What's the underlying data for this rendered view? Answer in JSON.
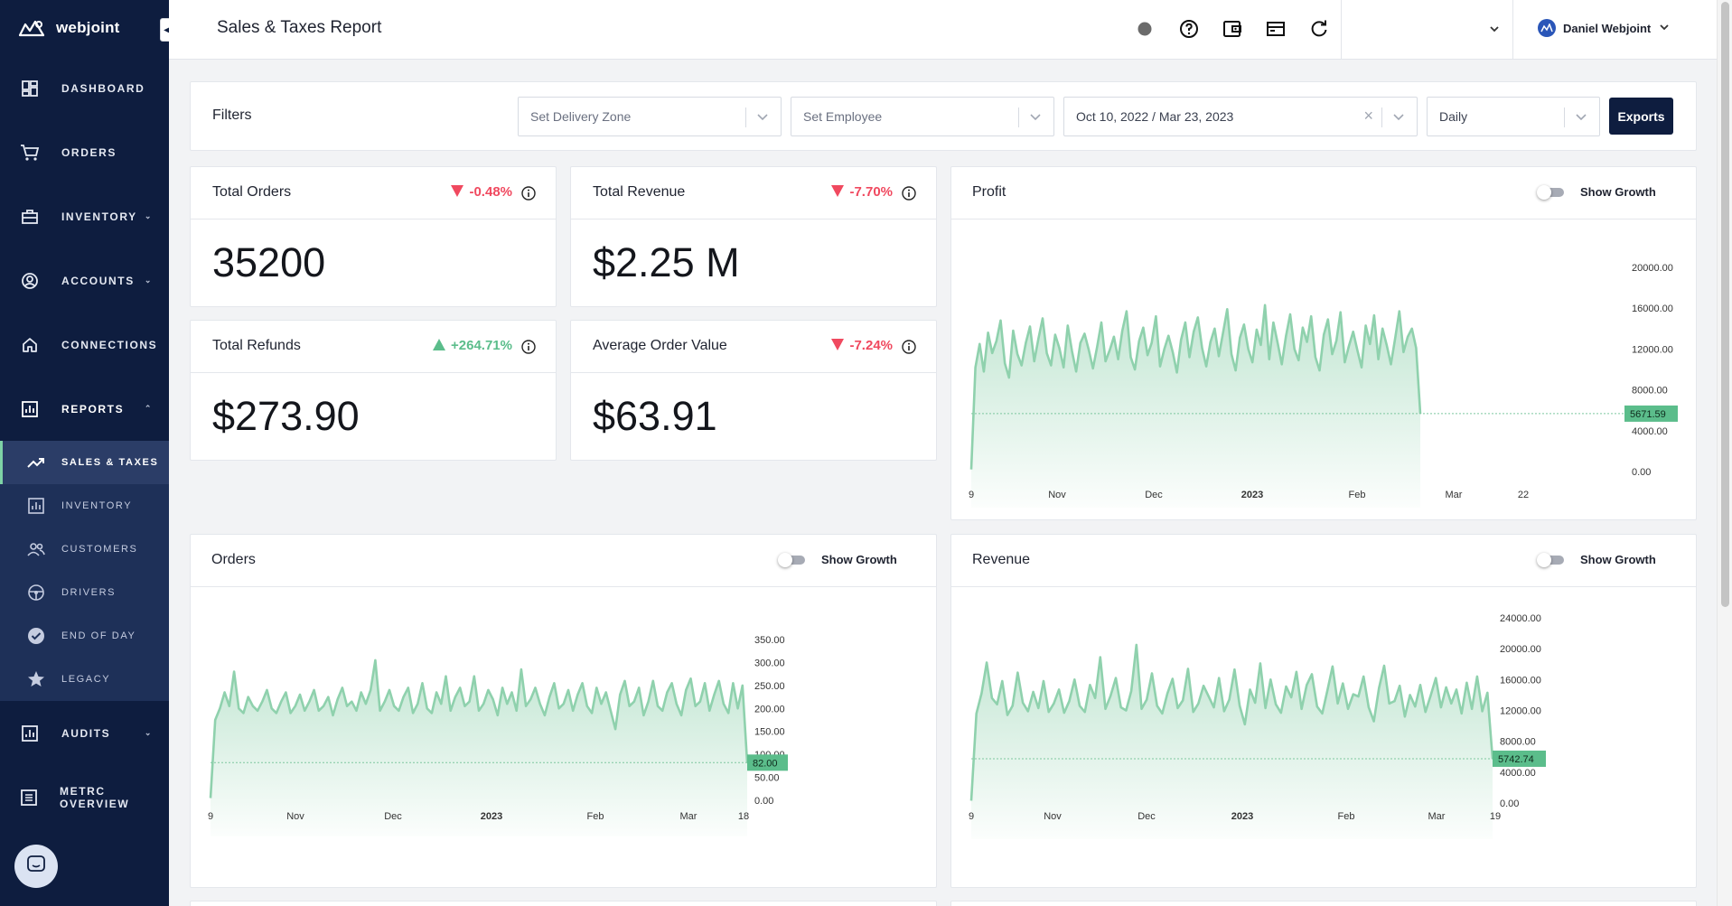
{
  "brand": {
    "name": "webjoint"
  },
  "sidebar": {
    "items": [
      {
        "label": "DASHBOARD",
        "icon": "dashboard-icon"
      },
      {
        "label": "ORDERS",
        "icon": "cart-icon"
      },
      {
        "label": "INVENTORY",
        "icon": "inventory-icon",
        "chevron": "expand"
      },
      {
        "label": "ACCOUNTS",
        "icon": "account-icon",
        "chevron": "expand"
      },
      {
        "label": "CONNECTIONS",
        "icon": "home-icon"
      },
      {
        "label": "REPORTS",
        "icon": "reports-icon",
        "chevron": "collapse"
      }
    ],
    "reports_sub": [
      {
        "label": "SALES & TAXES",
        "icon": "trending-up-icon",
        "active": true
      },
      {
        "label": "INVENTORY",
        "icon": "bar-chart-icon"
      },
      {
        "label": "CUSTOMERS",
        "icon": "people-icon"
      },
      {
        "label": "DRIVERS",
        "icon": "driver-icon"
      },
      {
        "label": "END OF DAY",
        "icon": "check-circle-icon"
      },
      {
        "label": "LEGACY",
        "icon": "star-icon"
      }
    ],
    "bottom_items": [
      {
        "label": "AUDITS",
        "icon": "audit-icon",
        "chevron": "expand"
      },
      {
        "label": "METRC OVERVIEW",
        "icon": "list-icon"
      }
    ]
  },
  "header": {
    "title": "Sales & Taxes Report",
    "status_color": "#6b6b6b",
    "user_name": "Daniel Webjoint",
    "icons": [
      "status-dot-icon",
      "help-icon",
      "wallet-icon",
      "register-icon",
      "refresh-icon"
    ]
  },
  "filters": {
    "label": "Filters",
    "delivery_zone_placeholder": "Set Delivery Zone",
    "employee_placeholder": "Set Employee",
    "date_range": "Oct 10, 2022 / Mar 23, 2023",
    "interval": "Daily",
    "exports_label": "Exports"
  },
  "stats": {
    "total_orders": {
      "title": "Total Orders",
      "change": "-0.48%",
      "direction": "down",
      "value": "35200"
    },
    "total_revenue": {
      "title": "Total Revenue",
      "change": "-7.70%",
      "direction": "down",
      "value": "$2.25 M"
    },
    "total_refunds": {
      "title": "Total Refunds",
      "change": "+264.71%",
      "direction": "up",
      "value": "$273.90"
    },
    "average_order_value": {
      "title": "Average Order Value",
      "change": "-7.24%",
      "direction": "down",
      "value": "$63.91"
    }
  },
  "charts": {
    "show_growth_label": "Show Growth",
    "profit": {
      "title": "Profit"
    },
    "orders": {
      "title": "Orders"
    },
    "revenue": {
      "title": "Revenue"
    }
  },
  "colors": {
    "accent": "#7ed3a6",
    "line": "#8fd1ad",
    "negative": "#f0495f",
    "positive": "#5bbd8b",
    "navy": "#0e1d3f"
  },
  "chart_data": [
    {
      "id": "profit",
      "type": "area",
      "title": "Profit",
      "x_ticks": [
        "9",
        "Nov",
        "Dec",
        "2023",
        "Feb",
        "Mar",
        "22"
      ],
      "y_ticks": [
        "20000.00",
        "16000.00",
        "12000.00",
        "8000.00",
        "4000.00",
        "0.00"
      ],
      "ylim": [
        0,
        20000
      ],
      "last_value": "5671.59",
      "values": [
        200,
        10200,
        12500,
        9800,
        13600,
        11600,
        12800,
        14800,
        10600,
        9200,
        13800,
        11500,
        10400,
        12600,
        14200,
        10800,
        13000,
        15000,
        11600,
        10400,
        13400,
        12100,
        10200,
        14300,
        11800,
        9800,
        12600,
        13500,
        11900,
        10100,
        12200,
        14600,
        10800,
        11900,
        13200,
        11000,
        13800,
        15700,
        11200,
        10000,
        12800,
        14100,
        11400,
        12600,
        15200,
        10300,
        12000,
        13300,
        11700,
        9700,
        12900,
        14600,
        11200,
        13700,
        15100,
        12100,
        10300,
        12700,
        14000,
        11300,
        13600,
        15900,
        11500,
        9900,
        13100,
        14400,
        12000,
        10700,
        13900,
        12400,
        16300,
        11000,
        14600,
        12600,
        10500,
        13300,
        15400,
        12000,
        10900,
        14100,
        12700,
        15200,
        11200,
        9900,
        13400,
        14900,
        11500,
        12800,
        15600,
        10700,
        12300,
        13700,
        11900,
        10200,
        14300,
        12500,
        15300,
        11000,
        14000,
        12400,
        10500,
        13000,
        15700,
        11700,
        13200,
        14000,
        12100,
        5671.59
      ]
    },
    {
      "id": "orders",
      "type": "area",
      "title": "Orders",
      "x_ticks": [
        "9",
        "Nov",
        "Dec",
        "2023",
        "Feb",
        "Mar",
        "18"
      ],
      "y_ticks": [
        "350.00",
        "300.00",
        "250.00",
        "200.00",
        "150.00",
        "100.00",
        "50.00",
        "0.00"
      ],
      "ylim": [
        0,
        350
      ],
      "last_value": "82.00",
      "values": [
        5,
        175,
        200,
        235,
        205,
        280,
        200,
        190,
        225,
        205,
        195,
        215,
        240,
        200,
        190,
        215,
        235,
        190,
        205,
        230,
        195,
        215,
        240,
        195,
        205,
        225,
        185,
        220,
        245,
        205,
        215,
        195,
        235,
        210,
        240,
        305,
        195,
        215,
        240,
        205,
        195,
        225,
        245,
        190,
        210,
        255,
        200,
        190,
        235,
        210,
        270,
        195,
        225,
        245,
        205,
        215,
        270,
        195,
        210,
        240,
        220,
        185,
        245,
        210,
        235,
        195,
        285,
        205,
        220,
        245,
        210,
        185,
        225,
        255,
        200,
        210,
        240,
        195,
        230,
        255,
        205,
        190,
        245,
        210,
        235,
        195,
        155,
        230,
        260,
        205,
        215,
        245,
        185,
        215,
        260,
        205,
        195,
        235,
        255,
        210,
        185,
        240,
        265,
        205,
        215,
        255,
        195,
        230,
        260,
        210,
        190,
        255,
        200,
        250,
        82
      ]
    },
    {
      "id": "revenue",
      "type": "area",
      "title": "Revenue",
      "x_ticks": [
        "9",
        "Nov",
        "Dec",
        "2023",
        "Feb",
        "Mar",
        "19"
      ],
      "y_ticks": [
        "24000.00",
        "20000.00",
        "16000.00",
        "12000.00",
        "8000.00",
        "4000.00",
        "0.00"
      ],
      "ylim": [
        0,
        24000
      ],
      "last_value": "5742.74",
      "values": [
        300,
        11600,
        14200,
        18200,
        13600,
        12800,
        15800,
        11400,
        12600,
        16900,
        13000,
        11900,
        14400,
        12300,
        15800,
        11800,
        12900,
        14700,
        11700,
        13200,
        16000,
        12600,
        11800,
        15300,
        13600,
        18900,
        12200,
        13900,
        16200,
        12400,
        12000,
        14500,
        20500,
        12200,
        13400,
        16800,
        12600,
        11600,
        14200,
        16100,
        12300,
        13300,
        17400,
        11800,
        12900,
        15200,
        13800,
        12400,
        16200,
        11900,
        13400,
        17300,
        12600,
        10200,
        14700,
        13000,
        18100,
        12300,
        16000,
        12800,
        11700,
        15100,
        13700,
        17000,
        12200,
        15300,
        16700,
        12500,
        11600,
        14600,
        17700,
        12900,
        15500,
        12200,
        14100,
        13800,
        16400,
        12400,
        10600,
        14900,
        17800,
        12900,
        13200,
        15200,
        11200,
        14000,
        12500,
        15300,
        11800,
        13900,
        16200,
        12400,
        15000,
        12900,
        14700,
        11600,
        15600,
        12200,
        16400,
        11900,
        14300,
        5742.74
      ]
    }
  ]
}
